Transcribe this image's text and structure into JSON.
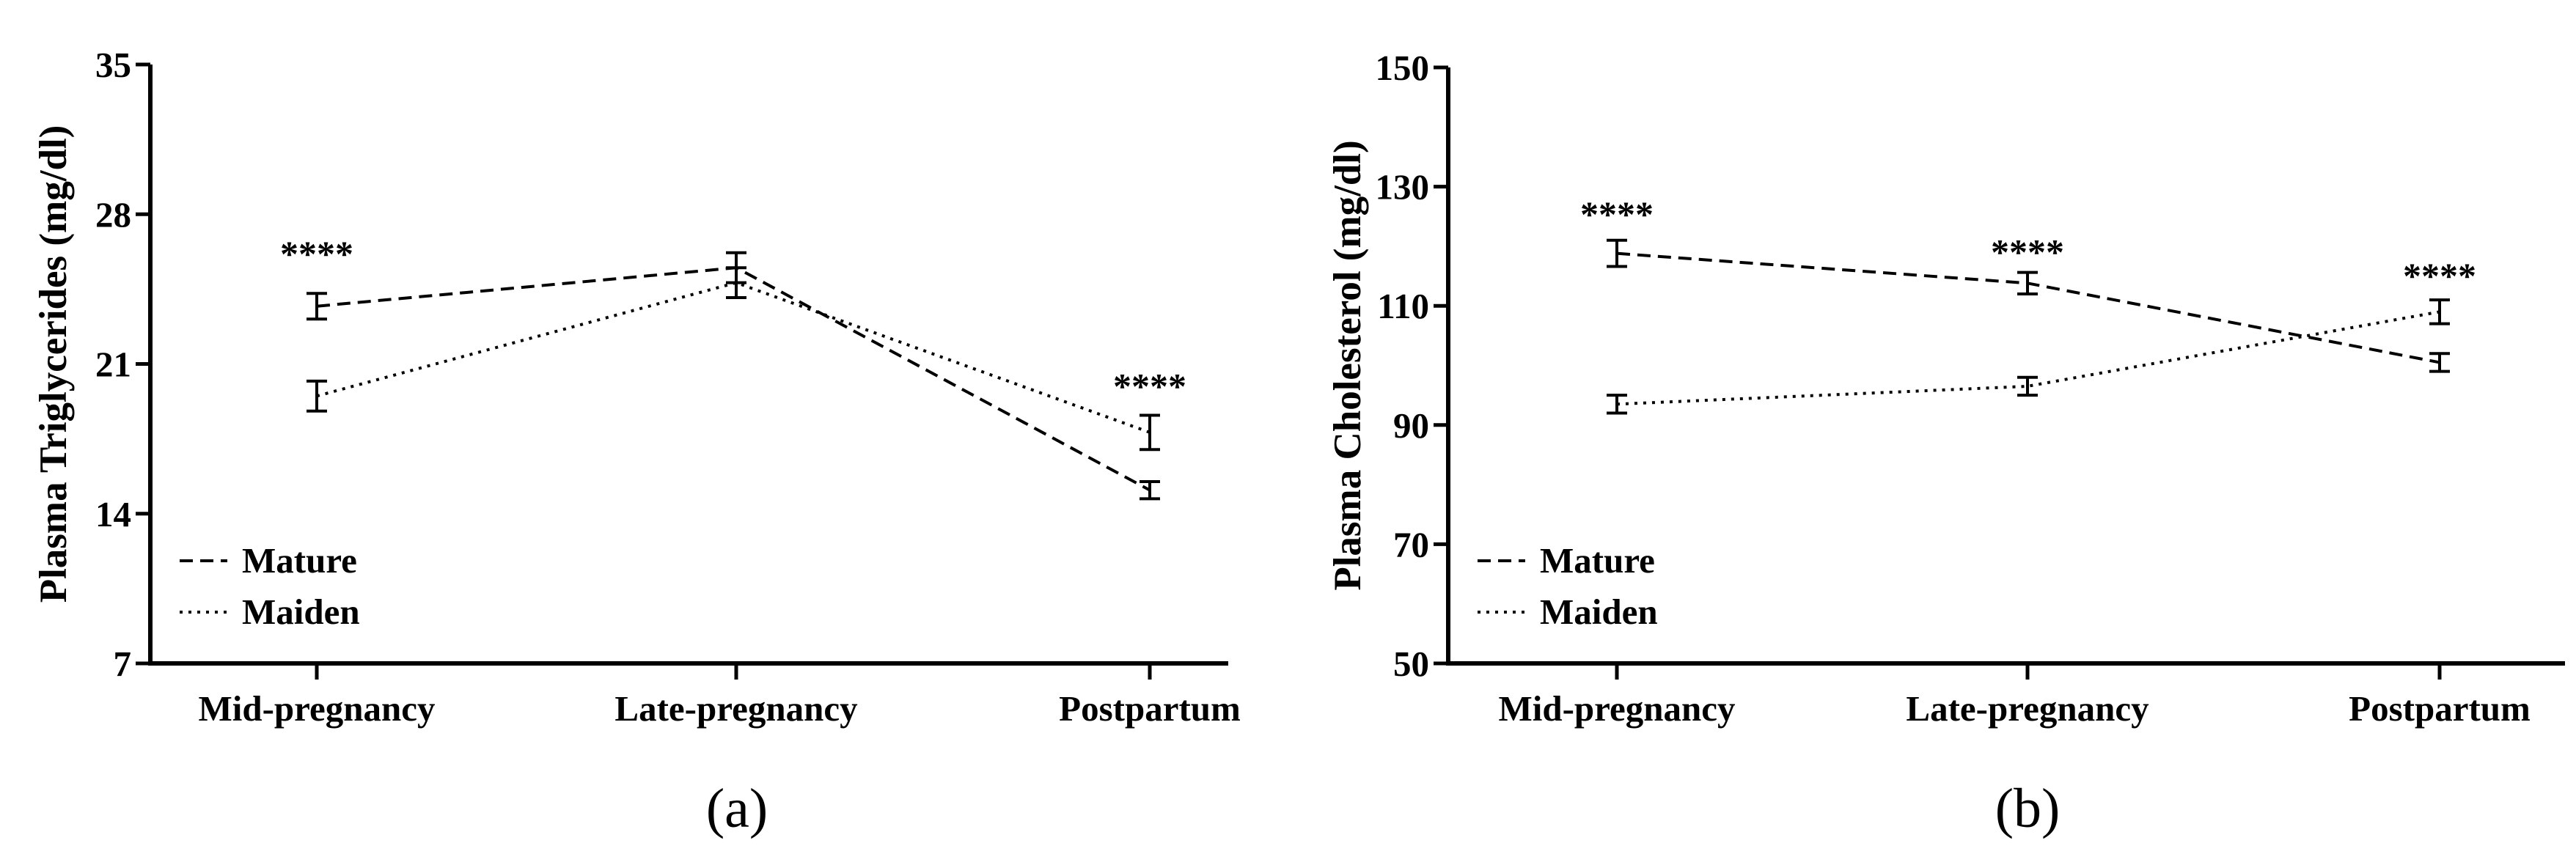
{
  "chart_data": [
    {
      "type": "line",
      "panel_label": "(a)",
      "title": "",
      "xlabel": "",
      "ylabel": "Plasma Triglycerides (mg/dl)",
      "categories": [
        "Mid-pregnancy",
        "Late-pregnancy",
        "Postpartum"
      ],
      "ylim": [
        7,
        35
      ],
      "yticks": [
        "7",
        "14",
        "21",
        "28",
        "35"
      ],
      "series": [
        {
          "name": "Mature",
          "style": "dashed",
          "values": [
            23.7,
            25.5,
            15.1
          ],
          "errors": [
            0.6,
            0.7,
            0.4
          ]
        },
        {
          "name": "Maiden",
          "style": "dotted",
          "values": [
            19.5,
            24.8,
            17.8
          ],
          "errors": [
            0.7,
            0.7,
            0.8
          ]
        }
      ],
      "annotations": [
        {
          "category": "Mid-pregnancy",
          "text": "****",
          "y": 26.2
        },
        {
          "category": "Postpartum",
          "text": "****",
          "y": 20.0
        }
      ],
      "legend_position": "bottom-left"
    },
    {
      "type": "line",
      "panel_label": "(b)",
      "title": "",
      "xlabel": "",
      "ylabel": "Plasma Cholesterol (mg/dl)",
      "categories": [
        "Mid-pregnancy",
        "Late-pregnancy",
        "Postpartum"
      ],
      "ylim": [
        50,
        150
      ],
      "yticks": [
        "50",
        "70",
        "90",
        "110",
        "130",
        "150"
      ],
      "series": [
        {
          "name": "Mature",
          "style": "dashed",
          "values": [
            118.8,
            113.8,
            100.5
          ],
          "errors": [
            2.2,
            1.8,
            1.5
          ]
        },
        {
          "name": "Maiden",
          "style": "dotted",
          "values": [
            93.5,
            96.5,
            109.0
          ],
          "errors": [
            1.5,
            1.5,
            2.0
          ]
        }
      ],
      "annotations": [
        {
          "category": "Mid-pregnancy",
          "text": "****",
          "y": 125.5
        },
        {
          "category": "Late-pregnancy",
          "text": "****",
          "y": 119.2
        },
        {
          "category": "Postpartum",
          "text": "****",
          "y": 115.2
        }
      ],
      "legend_position": "bottom-left"
    }
  ]
}
